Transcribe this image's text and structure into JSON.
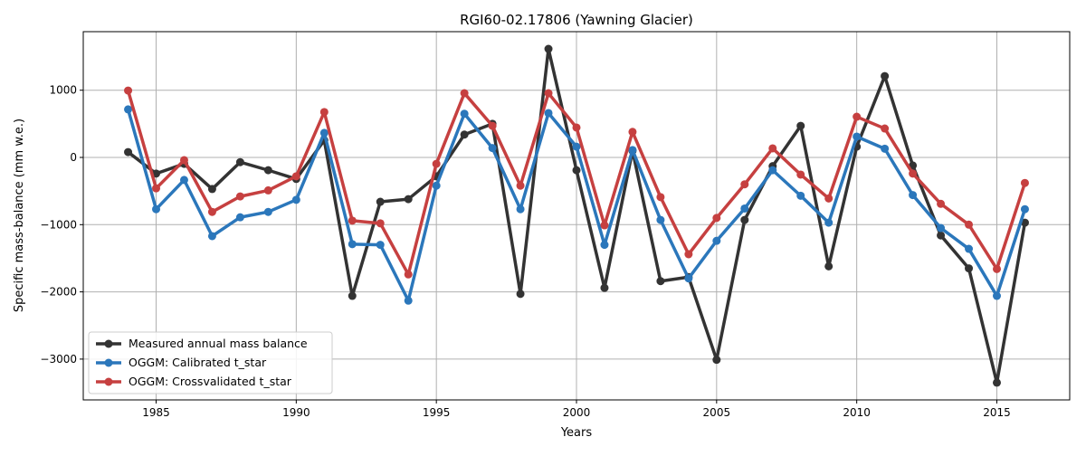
{
  "chart_data": {
    "type": "line",
    "title": "RGI60-02.17806 (Yawning Glacier)",
    "xlabel": "Years",
    "ylabel": "Specific mass-balance (mm w.e.)",
    "xlim": [
      1982.4,
      2017.6
    ],
    "ylim": [
      -3607,
      1871
    ],
    "grid": true,
    "legend_position": "lower-left",
    "xticks": [
      1985,
      1990,
      1995,
      2000,
      2005,
      2010,
      2015
    ],
    "xtick_labels": [
      "1985",
      "1990",
      "1995",
      "2000",
      "2005",
      "2010",
      "2015"
    ],
    "yticks": [
      1000,
      0,
      -1000,
      -2000,
      -3000
    ],
    "ytick_labels": [
      "1000",
      "0",
      "−1000",
      "−2000",
      "−3000"
    ],
    "x": [
      1984,
      1985,
      1986,
      1987,
      1988,
      1989,
      1990,
      1991,
      1992,
      1993,
      1994,
      1995,
      1996,
      1997,
      1998,
      1999,
      2000,
      2001,
      2002,
      2003,
      2004,
      2005,
      2006,
      2007,
      2008,
      2009,
      2010,
      2011,
      2012,
      2013,
      2014,
      2015,
      2016
    ],
    "series": [
      {
        "name": "Measured annual mass balance",
        "color": "#333333",
        "values": [
          80,
          -240,
          -95,
          -470,
          -70,
          -190,
          -320,
          255,
          -2060,
          -660,
          -620,
          -280,
          340,
          500,
          -2030,
          1615,
          -190,
          -1940,
          100,
          -1840,
          -1780,
          -3010,
          -930,
          -130,
          470,
          -1620,
          160,
          1210,
          -120,
          -1160,
          -1650,
          -3350,
          -970
        ]
      },
      {
        "name": "OGGM: Calibrated t_star",
        "color": "#2b77bb",
        "values": [
          715,
          -770,
          -335,
          -1170,
          -890,
          -810,
          -630,
          365,
          -1290,
          -1300,
          -2130,
          -420,
          650,
          140,
          -770,
          660,
          160,
          -1300,
          110,
          -930,
          -1800,
          -1240,
          -760,
          -190,
          -570,
          -970,
          310,
          130,
          -560,
          -1050,
          -1360,
          -2060,
          -770
        ]
      },
      {
        "name": "OGGM: Crossvalidated t_star",
        "color": "#c64040",
        "values": [
          995,
          -460,
          -40,
          -810,
          -580,
          -490,
          -280,
          675,
          -940,
          -980,
          -1740,
          -95,
          955,
          470,
          -420,
          955,
          445,
          -1010,
          380,
          -590,
          -1440,
          -900,
          -400,
          135,
          -255,
          -610,
          605,
          430,
          -240,
          -690,
          -1000,
          -1660,
          -380
        ]
      }
    ]
  }
}
